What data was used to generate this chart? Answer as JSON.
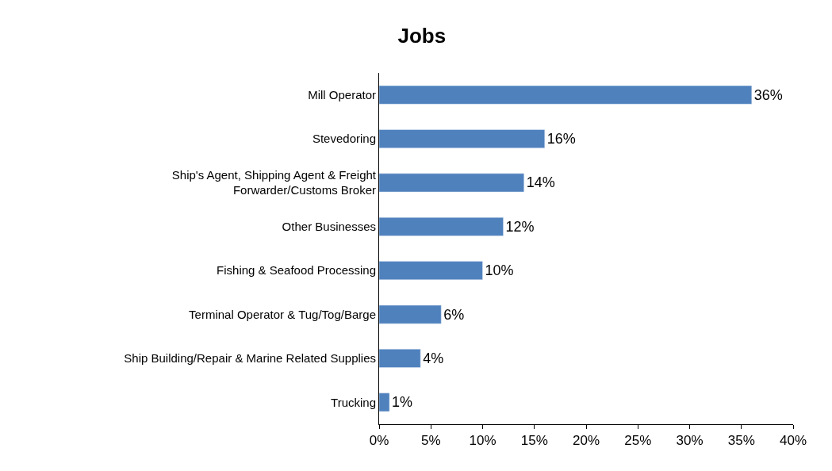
{
  "chart_data": {
    "type": "bar",
    "orientation": "horizontal",
    "title": "Jobs",
    "categories": [
      "Mill Operator",
      "Stevedoring",
      "Ship's Agent, Shipping Agent & Freight Forwarder/Customs Broker",
      "Other Businesses",
      "Fishing & Seafood Processing",
      "Terminal Operator & Tug/Tog/Barge",
      "Ship Building/Repair & Marine Related Supplies",
      "Trucking"
    ],
    "values": [
      36,
      16,
      14,
      12,
      10,
      6,
      4,
      1
    ],
    "value_labels": [
      "36%",
      "16%",
      "14%",
      "12%",
      "10%",
      "6%",
      "4%",
      "1%"
    ],
    "color": "#4f81bd",
    "xlim": [
      0,
      40
    ],
    "xticks": [
      {
        "value": 0,
        "label": "0%"
      },
      {
        "value": 5,
        "label": "5%"
      },
      {
        "value": 10,
        "label": "10%"
      },
      {
        "value": 15,
        "label": "15%"
      },
      {
        "value": 20,
        "label": "20%"
      },
      {
        "value": 25,
        "label": "25%"
      },
      {
        "value": 30,
        "label": "30%"
      },
      {
        "value": 35,
        "label": "35%"
      },
      {
        "value": 40,
        "label": "40%"
      }
    ],
    "grid": false,
    "legend": false
  }
}
